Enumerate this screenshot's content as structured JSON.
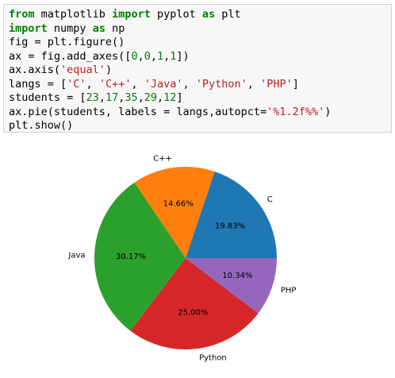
{
  "code": [
    "from matplotlib import pyplot as plt",
    "import numpy as np",
    "fig = plt.figure()",
    "ax = fig.add_axes([0,0,1,1])",
    "ax.axis('equal')",
    "langs = ['C', 'C++', 'Java', 'Python', 'PHP']",
    "students = [23,17,35,29,12]",
    "ax.pie(students, labels = langs,autopct='%1.2f%%')",
    "plt.show()"
  ],
  "chart_data": {
    "type": "pie",
    "categories": [
      "C",
      "C++",
      "Java",
      "Python",
      "PHP"
    ],
    "values": [
      19.83,
      14.66,
      30.17,
      25.0,
      10.34
    ],
    "value_labels": [
      "19.83%",
      "14.66%",
      "30.17%",
      "25.00%",
      "10.34%"
    ],
    "colors": [
      "#1f77b4",
      "#ff7f0e",
      "#2ca02c",
      "#d62728",
      "#9467bd"
    ]
  }
}
